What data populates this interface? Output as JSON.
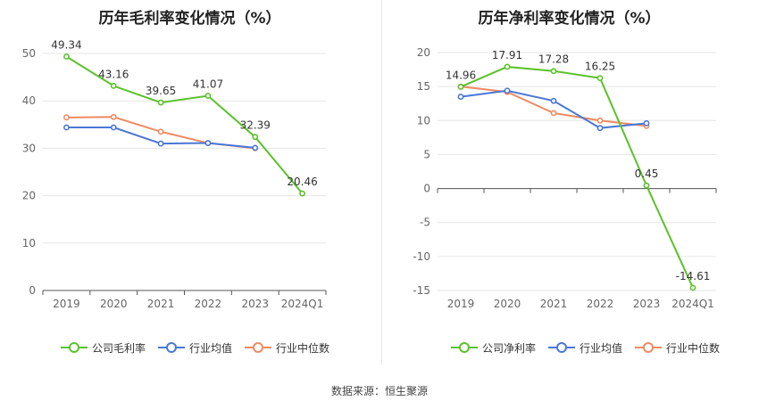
{
  "source_label": "数据来源：恒生聚源",
  "chart_data": [
    {
      "type": "line",
      "title": "历年毛利率变化情况（%）",
      "categories": [
        "2019",
        "2020",
        "2021",
        "2022",
        "2023",
        "2024Q1"
      ],
      "ylim": [
        0,
        50
      ],
      "yticks": [
        0,
        10,
        20,
        30,
        40,
        50
      ],
      "grid": true,
      "legend_position": "bottom",
      "series": [
        {
          "name": "公司毛利率",
          "color": "#5ac229",
          "values": [
            49.34,
            43.16,
            39.65,
            41.07,
            32.39,
            20.46
          ],
          "labels": [
            "49.34",
            "43.16",
            "39.65",
            "41.07",
            "32.39",
            "20.46"
          ]
        },
        {
          "name": "行业均值",
          "color": "#4a78d6",
          "values": [
            34.4,
            34.4,
            31.0,
            31.1,
            30.1,
            null
          ],
          "labels": []
        },
        {
          "name": "行业中位数",
          "color": "#ef8a60",
          "values": [
            36.5,
            36.6,
            33.5,
            31.1,
            30.0,
            null
          ],
          "labels": []
        }
      ]
    },
    {
      "type": "line",
      "title": "历年净利率变化情况（%）",
      "categories": [
        "2019",
        "2020",
        "2021",
        "2022",
        "2023",
        "2024Q1"
      ],
      "ylim": [
        -15,
        20
      ],
      "yticks": [
        -15,
        -10,
        -5,
        0,
        5,
        10,
        15,
        20
      ],
      "grid": true,
      "legend_position": "bottom",
      "series": [
        {
          "name": "公司净利率",
          "color": "#5ac229",
          "values": [
            14.96,
            17.91,
            17.28,
            16.25,
            0.45,
            -14.61
          ],
          "labels": [
            "14.96",
            "17.91",
            "17.28",
            "16.25",
            "0.45",
            "-14.61"
          ]
        },
        {
          "name": "行业均值",
          "color": "#4a78d6",
          "values": [
            13.5,
            14.4,
            12.9,
            8.9,
            9.6,
            null
          ],
          "labels": []
        },
        {
          "name": "行业中位数",
          "color": "#ef8a60",
          "values": [
            15.0,
            14.2,
            11.1,
            10.0,
            9.2,
            null
          ],
          "labels": []
        }
      ]
    }
  ]
}
